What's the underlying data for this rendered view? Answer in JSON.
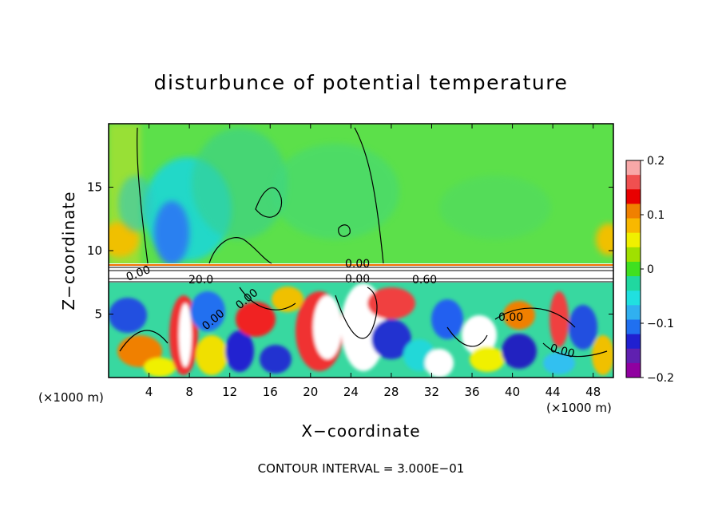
{
  "chart_data": {
    "type": "heatmap",
    "title": "disturbunce of potential temperature",
    "xlabel": "X−coordinate",
    "ylabel": "Z−coordinate",
    "x_unit": "(×1000 m)",
    "x_unit_right": "(×1000 m)",
    "xlim": [
      0,
      50
    ],
    "ylim": [
      0,
      20
    ],
    "x_ticks": [
      4,
      8,
      12,
      16,
      20,
      24,
      28,
      32,
      36,
      40,
      44,
      48
    ],
    "y_ticks": [
      5,
      10,
      15
    ],
    "colorbar": {
      "min": -0.2,
      "max": 0.2,
      "tick_values": [
        0.2,
        0.1,
        0,
        -0.1,
        -0.2
      ],
      "tick_labels": [
        "0.2",
        "0.1",
        "0",
        "−0.1",
        "−0.2"
      ],
      "colors": [
        "#f8a8a8",
        "#f05050",
        "#e80000",
        "#f08000",
        "#f8b800",
        "#f0f000",
        "#a0e000",
        "#40e020",
        "#20d8a0",
        "#20e0e0",
        "#30b0f0",
        "#2070f0",
        "#2020d0",
        "#6020b0",
        "#9000a0"
      ]
    },
    "contour_labels": [
      "0.00",
      "0.60",
      "0.00",
      "0.00",
      "0.00",
      "0.00",
      "0.00",
      "0.00",
      "20.0"
    ],
    "footer": "CONTOUR INTERVAL = 3.000E−01"
  }
}
